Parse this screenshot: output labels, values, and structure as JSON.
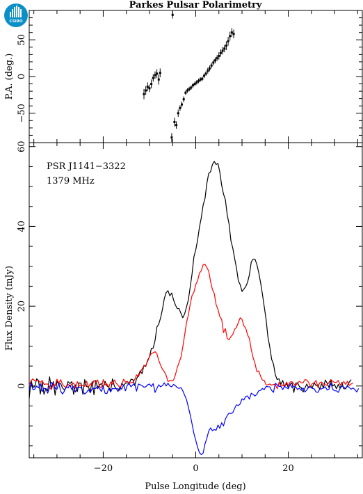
{
  "logo": {
    "text": "CSIRO",
    "color": "#0a8fc6"
  },
  "chart_data": [
    {
      "type": "scatter",
      "title": "Parkes Pulsar Polarimetry",
      "ylabel": "P.A. (deg.)",
      "xlim": [
        -36,
        36
      ],
      "ylim": [
        -90,
        90
      ],
      "yticks": [
        -50,
        0,
        50
      ],
      "error_bars": true,
      "series": [
        {
          "points": [
            {
              "x": -11.2,
              "y": -24,
              "err": 7
            },
            {
              "x": -10.8,
              "y": -19,
              "err": 6
            },
            {
              "x": -10.4,
              "y": -14,
              "err": 6
            },
            {
              "x": -10.0,
              "y": -16,
              "err": 5
            },
            {
              "x": -9.6,
              "y": -10,
              "err": 6
            },
            {
              "x": -9.2,
              "y": -2,
              "err": 5
            },
            {
              "x": -8.8,
              "y": 2,
              "err": 5
            },
            {
              "x": -8.4,
              "y": 4,
              "err": 6
            },
            {
              "x": -8.0,
              "y": -4,
              "err": 7
            },
            {
              "x": -7.7,
              "y": 5,
              "err": 6
            },
            {
              "x": -5.0,
              "y": 84,
              "err": 5
            },
            {
              "x": -5.2,
              "y": -83,
              "err": 6
            },
            {
              "x": -4.6,
              "y": -62,
              "err": 6
            },
            {
              "x": -4.2,
              "y": -66,
              "err": 5
            },
            {
              "x": -3.8,
              "y": -50,
              "err": 5
            },
            {
              "x": -3.4,
              "y": -43,
              "err": 4
            },
            {
              "x": -3.0,
              "y": -38,
              "err": 4
            },
            {
              "x": -2.6,
              "y": -31,
              "err": 4
            },
            {
              "x": -2.2,
              "y": -22,
              "err": 3
            },
            {
              "x": -1.8,
              "y": -19,
              "err": 3
            },
            {
              "x": -1.4,
              "y": -17,
              "err": 3
            },
            {
              "x": -1.0,
              "y": -15,
              "err": 3
            },
            {
              "x": -0.6,
              "y": -12,
              "err": 3
            },
            {
              "x": -0.2,
              "y": -10,
              "err": 3
            },
            {
              "x": 0.2,
              "y": -8,
              "err": 3
            },
            {
              "x": 0.6,
              "y": -6,
              "err": 3
            },
            {
              "x": 1.0,
              "y": -4,
              "err": 3
            },
            {
              "x": 1.4,
              "y": -3,
              "err": 3
            },
            {
              "x": 1.8,
              "y": 1,
              "err": 3
            },
            {
              "x": 2.2,
              "y": 4,
              "err": 3
            },
            {
              "x": 2.6,
              "y": 8,
              "err": 4
            },
            {
              "x": 3.0,
              "y": 11,
              "err": 4
            },
            {
              "x": 3.4,
              "y": 15,
              "err": 4
            },
            {
              "x": 3.8,
              "y": 19,
              "err": 4
            },
            {
              "x": 4.2,
              "y": 22,
              "err": 4
            },
            {
              "x": 4.6,
              "y": 25,
              "err": 4
            },
            {
              "x": 5.0,
              "y": 28,
              "err": 5
            },
            {
              "x": 5.4,
              "y": 32,
              "err": 5
            },
            {
              "x": 5.8,
              "y": 35,
              "err": 5
            },
            {
              "x": 6.2,
              "y": 38,
              "err": 5
            },
            {
              "x": 6.6,
              "y": 42,
              "err": 6
            },
            {
              "x": 7.0,
              "y": 48,
              "err": 6
            },
            {
              "x": 7.4,
              "y": 55,
              "err": 6
            },
            {
              "x": 7.8,
              "y": 60,
              "err": 6
            },
            {
              "x": 8.2,
              "y": 58,
              "err": 6
            }
          ]
        }
      ]
    },
    {
      "type": "line",
      "xlabel": "Pulse Longitude (deg)",
      "ylabel": "Flux Density (mJy)",
      "xlim": [
        -36,
        36
      ],
      "ylim": [
        -18,
        61
      ],
      "xticks": [
        -20,
        0,
        20
      ],
      "yticks": [
        0,
        20,
        40,
        60
      ],
      "annotations": [
        "PSR J1141−3322",
        "1379 MHz"
      ],
      "x_start": -36,
      "x_step": 0.4,
      "series": [
        {
          "color": "#000000",
          "values": [
            -3.1,
            1.4,
            -0.3,
            -0.2,
            1.8,
            1.4,
            -2,
            1,
            -2.1,
            -0.6,
            -1.2,
            2.3,
            -0.6,
            1.1,
            -2.3,
            1.2,
            0.5,
            0.6,
            -0.5,
            -1,
            -0.4,
            1.1,
            0.6,
            1.1,
            -2.1,
            0.3,
            -1.4,
            0.8,
            0.7,
            -2.1,
            1.6,
            -0.1,
            -0.3,
            -1.3,
            1.1,
            -2.2,
            1.4,
            -0.7,
            0.3,
            0.6,
            -0.3,
            1.2,
            0,
            -0.3,
            -1.2,
            1.8,
            0,
            -0.7,
            -0.7,
            -1.1,
            0.7,
            0.1,
            0.7,
            0.8,
            0.6,
            1.7,
            1.6,
            0.1,
            1.8,
            2.7,
            3.8,
            3.1,
            5.2,
            4.9,
            6.5,
            7.3,
            9.4,
            9.5,
            11.4,
            14.8,
            15.5,
            17.1,
            19.2,
            21.9,
            23.4,
            23.9,
            22.6,
            23.3,
            21.6,
            20.3,
            19.4,
            19.4,
            18.2,
            17.1,
            18.1,
            19.8,
            21.6,
            24.8,
            28.1,
            32.4,
            34.1,
            36.6,
            39.8,
            42.2,
            45.4,
            47,
            50.8,
            53.3,
            53.7,
            55.5,
            56.3,
            55.5,
            55.8,
            53.6,
            50.3,
            48.1,
            46.7,
            42.9,
            40.6,
            36.4,
            34.6,
            32,
            29.6,
            26.4,
            25.4,
            23.7,
            24.3,
            24.9,
            26,
            27.9,
            31.1,
            31.8,
            31.8,
            30.5,
            28.5,
            26,
            23.1,
            19.9,
            16.7,
            12.3,
            9.8,
            6.7,
            5.5,
            2.8,
            1.6,
            1.8,
            0.4,
            1.4,
            -0.2,
            0.7,
            -0.4,
            0.4,
            0.8,
            -1.6,
            0.7,
            0.8,
            -0.1,
            -0.4,
            -1.5,
            -0.5,
            0.5,
            -0.5,
            0,
            -0.4,
            0.8,
            0.1,
            0.3,
            -0.8,
            0.6,
            -0.5,
            1.5,
            0.7,
            -0.4,
            1.5,
            0,
            0.4,
            -0.7,
            0.4,
            -0.6,
            0.9,
            -0.7,
            -0.7,
            0.2,
            1,
            1.6
          ]
        },
        {
          "color": "#ff0000",
          "values": [
            0.2,
            1.3,
            1.8,
            1.3,
            1.3,
            1.4,
            0.9,
            1.4,
            0.4,
            0.5,
            0.5,
            -0.3,
            -0.9,
            0.6,
            0.1,
            1.7,
            0.7,
            1.6,
            0.4,
            -0.1,
            -0.4,
            0.4,
            0,
            0.4,
            0.8,
            -0.5,
            1.1,
            0,
            0.3,
            0.1,
            -0.1,
            1.2,
            -0.3,
            0.6,
            0.1,
            1.4,
            0.9,
            1.5,
            -0.1,
            -0.5,
            1.6,
            0.3,
            0.5,
            -0.3,
            1,
            0.4,
            1.5,
            0.7,
            0.2,
            -0.4,
            0.3,
            1.7,
            1,
            1.2,
            0.7,
            0.8,
            0.9,
            1.6,
            2.8,
            2.3,
            3.4,
            4.3,
            5,
            5.1,
            6.2,
            7.3,
            8.2,
            8.3,
            8.6,
            8.1,
            6.4,
            5.2,
            4.2,
            3.6,
            2.7,
            1.1,
            1.4,
            1.3,
            1.5,
            2.8,
            4.6,
            5.9,
            7.2,
            9.8,
            12.8,
            15.9,
            17.8,
            20.5,
            22.7,
            23.5,
            25.4,
            26.4,
            28.3,
            28.9,
            30.4,
            30.5,
            29.7,
            28.8,
            26.2,
            24.2,
            23.2,
            20.4,
            19.2,
            17.4,
            16.7,
            13.4,
            14.4,
            11.9,
            11.6,
            12.4,
            12.9,
            14.2,
            14.7,
            15.9,
            17.1,
            16.7,
            15.1,
            14.5,
            12.8,
            11.9,
            9.1,
            7.1,
            5.7,
            3.6,
            3.8,
            2.5,
            1.5,
            1.4,
            0.3,
            0.3,
            0.5,
            0.2,
            0.4,
            0.4,
            -0.7,
            0.9,
            -0.1,
            0.3,
            -0.2,
            1,
            0.1,
            1,
            1.1,
            0.5,
            0.1,
            0.7,
            1.2,
            0.8,
            0.8,
            1.6,
            1.5,
            0.9,
            -0.1,
            0.6,
            0.8,
            1.4,
            -0.3,
            0.8,
            1,
            0.5,
            0.3,
            0.2,
            0.9,
            1.6,
            1.2,
            0.9,
            0.9,
            1.4,
            0.3,
            0.6,
            1.1,
            0.4,
            1.2,
            0.1,
            0.5,
            0.8
          ]
        },
        {
          "color": "#0000ff",
          "values": [
            -1.1,
            0.8,
            -0.9,
            -0.8,
            0,
            -0.5,
            0.6,
            -1.4,
            -0.6,
            -0.7,
            -1.8,
            -0.4,
            0.9,
            0.5,
            -0.6,
            -0.8,
            0.7,
            -1.3,
            -2,
            -1.3,
            -0.2,
            -0.5,
            0.3,
            -0.9,
            -0.1,
            -1.5,
            -0.4,
            -0.3,
            -0.3,
            -1.4,
            -2,
            -1.6,
            -0.9,
            -1.7,
            -0.7,
            -0.6,
            -0.6,
            0,
            -0.6,
            -1.4,
            -0.2,
            -1.8,
            -1.9,
            -0.6,
            -1.5,
            -0.6,
            -0.7,
            -0.6,
            -1.4,
            -0.3,
            -0.8,
            0.3,
            -1.2,
            0.2,
            0.6,
            -0.2,
            0.3,
            0.6,
            -1.3,
            0.5,
            0.3,
            0.1,
            -0.3,
            -0.2,
            0.3,
            0.5,
            -0.1,
            0.6,
            -1.6,
            -0.6,
            0.3,
            -0.2,
            0.1,
            0.8,
            0,
            0.7,
            0,
            -0.2,
            0.4,
            0.1,
            -0.4,
            -0.6,
            -0.4,
            -1.2,
            -2.3,
            -3.4,
            -5.3,
            -7.2,
            -9.5,
            -11.9,
            -13.6,
            -15.4,
            -16.7,
            -17.2,
            -16.8,
            -14.5,
            -13.1,
            -11.3,
            -10.5,
            -11.2,
            -10.9,
            -11.1,
            -9.8,
            -10.6,
            -9.2,
            -10,
            -8.3,
            -7.4,
            -6.8,
            -6.9,
            -6.7,
            -5.6,
            -4.7,
            -4.9,
            -4.5,
            -3.2,
            -3.5,
            -2.6,
            -2.5,
            -3.3,
            -1.8,
            -2.1,
            -2.5,
            -2.1,
            -1.2,
            -1.1,
            -0.6,
            -0.9,
            -0.1,
            -0.2,
            -0.2,
            -1.1,
            -1.6,
            0.7,
            0.3,
            -0.1,
            -0.1,
            -0.9,
            -0.1,
            -0.4,
            -0.7,
            0.5,
            -0.4,
            0,
            -0.2,
            -0.9,
            -0.5,
            -1.1,
            -0.5,
            -1.5,
            -1,
            -0.2,
            -0.3,
            -0.6,
            -0.7,
            -1.5,
            -1.6,
            -0.8,
            -0.7,
            -0.5,
            -0.2,
            -1,
            -0.8,
            0.7,
            -0.8,
            -1.2,
            -1.2,
            -1.6,
            -0.6,
            0,
            -0.3,
            -0.6,
            0,
            -0.4,
            -0.8,
            -0.5,
            -0.9,
            -1.5,
            -0.6
          ]
        }
      ]
    }
  ]
}
